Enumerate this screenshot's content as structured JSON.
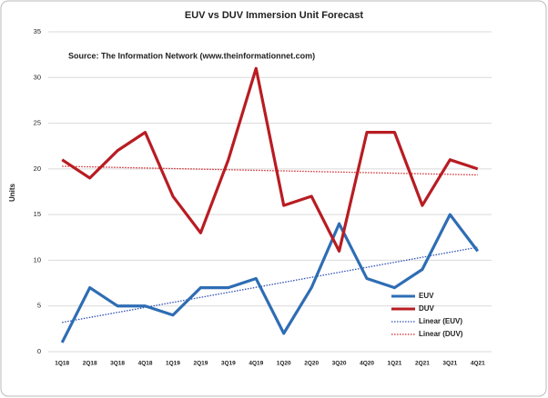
{
  "chart_data": {
    "type": "line",
    "title": "EUV vs DUV Immersion Unit Forecast",
    "annotation": "Source: The Information Network (www.theinformationnet.com)",
    "y_label": "Units",
    "categories": [
      "1Q18",
      "2Q18",
      "3Q18",
      "4Q18",
      "1Q19",
      "2Q19",
      "3Q19",
      "4Q19",
      "1Q20",
      "2Q20",
      "3Q20",
      "4Q20",
      "1Q21",
      "2Q21",
      "3Q21",
      "4Q21"
    ],
    "series": [
      {
        "name": "EUV",
        "color": "#2e6db4",
        "values": [
          1,
          7,
          5,
          5,
          4,
          7,
          7,
          8,
          2,
          7,
          14,
          8,
          7,
          9,
          15,
          11
        ],
        "trendline": {
          "name": "Linear (EUV)",
          "color": "#2e4fb4",
          "kind": "linear"
        }
      },
      {
        "name": "DUV",
        "color": "#b81c22",
        "values": [
          21,
          19,
          22,
          24,
          17,
          13,
          21,
          31,
          16,
          17,
          11,
          24,
          24,
          16,
          21,
          20
        ],
        "trendline": {
          "name": "Linear (DUV)",
          "color": "#d0282e",
          "kind": "linear"
        }
      }
    ],
    "ylim": [
      0,
      35
    ],
    "yticks": [
      0,
      5,
      10,
      15,
      20,
      25,
      30,
      35
    ],
    "grid": true,
    "legend": "lower right"
  }
}
